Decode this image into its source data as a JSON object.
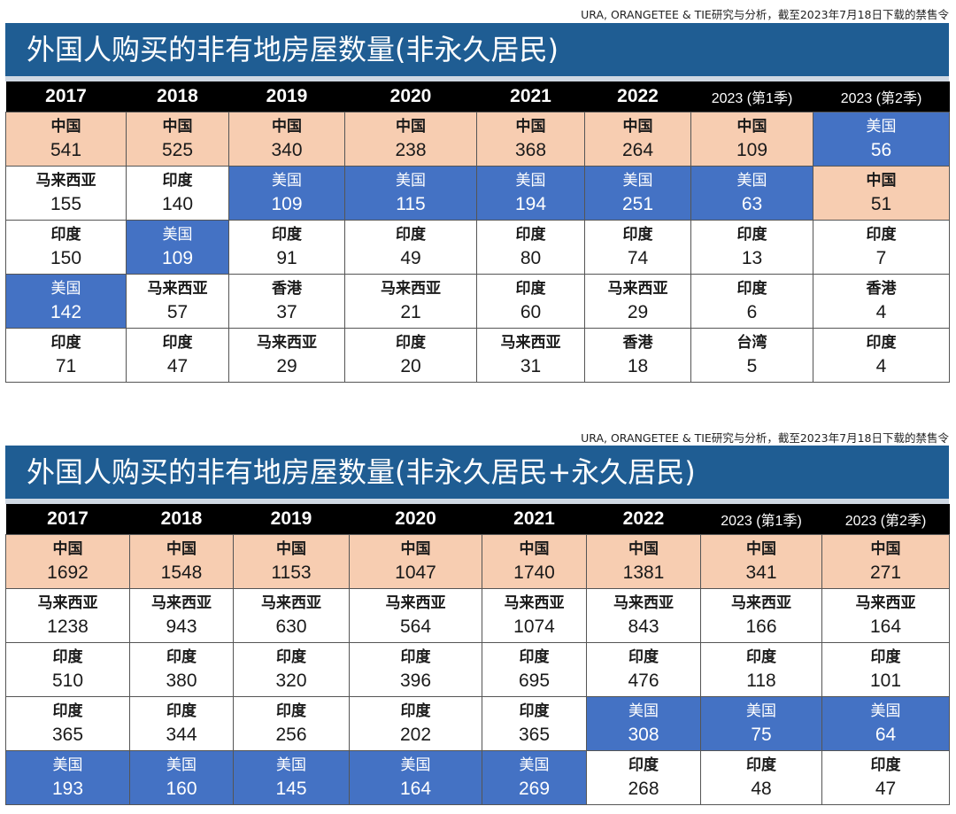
{
  "chart_data": [
    {
      "type": "table",
      "source": "URA, ORANGETEE & TIE研究与分析，截至2023年7月18日下载的禁售令",
      "title": "外国人购买的非有地房屋数量(非永久居民)",
      "columns": [
        "2017",
        "2018",
        "2019",
        "2020",
        "2021",
        "2022",
        "2023 (第1季)",
        "2023 (第2季)"
      ],
      "rows": [
        [
          {
            "country": "中国",
            "value": "541"
          },
          {
            "country": "中国",
            "value": "525"
          },
          {
            "country": "中国",
            "value": "340"
          },
          {
            "country": "中国",
            "value": "238"
          },
          {
            "country": "中国",
            "value": "368"
          },
          {
            "country": "中国",
            "value": "264"
          },
          {
            "country": "中国",
            "value": "109"
          },
          {
            "country": "美国",
            "value": "56"
          }
        ],
        [
          {
            "country": "马来西亚",
            "value": "155"
          },
          {
            "country": "印度",
            "value": "140"
          },
          {
            "country": "美国",
            "value": "109"
          },
          {
            "country": "美国",
            "value": "115"
          },
          {
            "country": "美国",
            "value": "194"
          },
          {
            "country": "美国",
            "value": "251"
          },
          {
            "country": "美国",
            "value": "63"
          },
          {
            "country": "中国",
            "value": "51"
          }
        ],
        [
          {
            "country": "印度",
            "value": "150"
          },
          {
            "country": "美国",
            "value": "109"
          },
          {
            "country": "印度",
            "value": "91"
          },
          {
            "country": "印度",
            "value": "49"
          },
          {
            "country": "印度",
            "value": "80"
          },
          {
            "country": "印度",
            "value": "74"
          },
          {
            "country": "印度",
            "value": "13"
          },
          {
            "country": "印度",
            "value": "7"
          }
        ],
        [
          {
            "country": "美国",
            "value": "142"
          },
          {
            "country": "马来西亚",
            "value": "57"
          },
          {
            "country": "香港",
            "value": "37"
          },
          {
            "country": "马来西亚",
            "value": "21"
          },
          {
            "country": "印度",
            "value": "60"
          },
          {
            "country": "马来西亚",
            "value": "29"
          },
          {
            "country": "印度",
            "value": "6"
          },
          {
            "country": "香港",
            "value": "4"
          }
        ],
        [
          {
            "country": "印度",
            "value": "71"
          },
          {
            "country": "印度",
            "value": "47"
          },
          {
            "country": "马来西亚",
            "value": "29"
          },
          {
            "country": "印度",
            "value": "20"
          },
          {
            "country": "马来西亚",
            "value": "31"
          },
          {
            "country": "香港",
            "value": "18"
          },
          {
            "country": "台湾",
            "value": "5"
          },
          {
            "country": "印度",
            "value": "4"
          }
        ]
      ]
    },
    {
      "type": "table",
      "source": "URA, ORANGETEE & TIE研究与分析，截至2023年7月18日下载的禁售令",
      "title": "外国人购买的非有地房屋数量(非永久居民+永久居民)",
      "columns": [
        "2017",
        "2018",
        "2019",
        "2020",
        "2021",
        "2022",
        "2023 (第1季)",
        "2023 (第2季)"
      ],
      "rows": [
        [
          {
            "country": "中国",
            "value": "1692"
          },
          {
            "country": "中国",
            "value": "1548"
          },
          {
            "country": "中国",
            "value": "1153"
          },
          {
            "country": "中国",
            "value": "1047"
          },
          {
            "country": "中国",
            "value": "1740"
          },
          {
            "country": "中国",
            "value": "1381"
          },
          {
            "country": "中国",
            "value": "341"
          },
          {
            "country": "中国",
            "value": "271"
          }
        ],
        [
          {
            "country": "马来西亚",
            "value": "1238"
          },
          {
            "country": "马来西亚",
            "value": "943"
          },
          {
            "country": "马来西亚",
            "value": "630"
          },
          {
            "country": "马来西亚",
            "value": "564"
          },
          {
            "country": "马来西亚",
            "value": "1074"
          },
          {
            "country": "马来西亚",
            "value": "843"
          },
          {
            "country": "马来西亚",
            "value": "166"
          },
          {
            "country": "马来西亚",
            "value": "164"
          }
        ],
        [
          {
            "country": "印度",
            "value": "510"
          },
          {
            "country": "印度",
            "value": "380"
          },
          {
            "country": "印度",
            "value": "320"
          },
          {
            "country": "印度",
            "value": "396"
          },
          {
            "country": "印度",
            "value": "695"
          },
          {
            "country": "印度",
            "value": "476"
          },
          {
            "country": "印度",
            "value": "118"
          },
          {
            "country": "印度",
            "value": "101"
          }
        ],
        [
          {
            "country": "印度",
            "value": "365"
          },
          {
            "country": "印度",
            "value": "344"
          },
          {
            "country": "印度",
            "value": "256"
          },
          {
            "country": "印度",
            "value": "202"
          },
          {
            "country": "印度",
            "value": "365"
          },
          {
            "country": "美国",
            "value": "308"
          },
          {
            "country": "美国",
            "value": "75"
          },
          {
            "country": "美国",
            "value": "64"
          }
        ],
        [
          {
            "country": "美国",
            "value": "193"
          },
          {
            "country": "美国",
            "value": "160"
          },
          {
            "country": "美国",
            "value": "145"
          },
          {
            "country": "美国",
            "value": "164"
          },
          {
            "country": "美国",
            "value": "269"
          },
          {
            "country": "印度",
            "value": "268"
          },
          {
            "country": "印度",
            "value": "48"
          },
          {
            "country": "印度",
            "value": "47"
          }
        ]
      ]
    }
  ],
  "colors": {
    "banner": "#1f5d93",
    "header": "#000000",
    "china_cell": "#f7cdb1",
    "usa_cell": "#4472c4",
    "other_cell": "#ffffff"
  }
}
